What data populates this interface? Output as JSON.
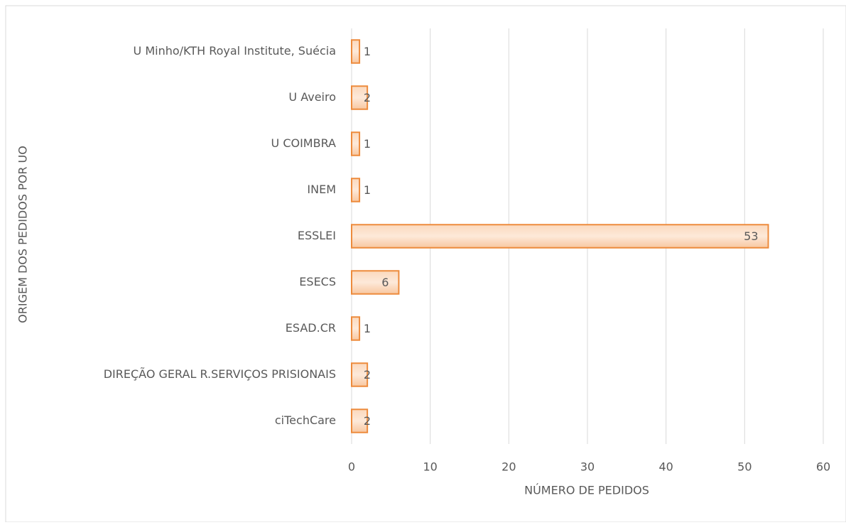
{
  "chart_data": {
    "type": "bar",
    "orientation": "horizontal",
    "categories": [
      "U Minho/KTH Royal Institute, Suécia",
      "U Aveiro",
      "U COIMBRA",
      "INEM",
      "ESSLEI",
      "ESECS",
      "ESAD.CR",
      "DIREÇÃO GERAL R.SERVIÇOS PRISIONAIS",
      "ciTechCare"
    ],
    "values": [
      1,
      2,
      1,
      1,
      53,
      6,
      1,
      2,
      2
    ],
    "color": "#ed8b3d",
    "xlim": [
      0,
      60
    ],
    "xticks": [
      0,
      10,
      20,
      30,
      40,
      50,
      60
    ],
    "grid": true,
    "xlabel": "NÚMERO DE PEDIDOS",
    "ylabel": "ORIGEM DOS PEDIDOS POR UO"
  }
}
